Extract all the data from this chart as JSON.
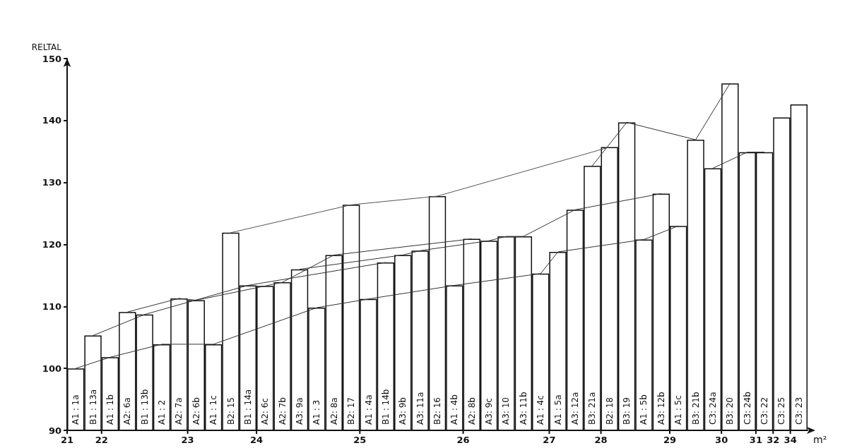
{
  "chart_data": {
    "type": "bar",
    "ylabel": "RELTAL",
    "xlabel": "m²",
    "categories": [
      "A1 : 1a",
      "B1 : 13a",
      "A1 : 1b",
      "A2: 6a",
      "B1 : 13b",
      "A1 : 2",
      "A2: 7a",
      "A2: 6b",
      "A1 : 1c",
      "B2: 15",
      "B1 : 14a",
      "A2: 6c",
      "A2: 7b",
      "A3: 9a",
      "A1 : 3",
      "A2: 8a",
      "B2: 17",
      "A1 : 4a",
      "B1 : 14b",
      "A3: 9b",
      "A3: 11a",
      "B2: 16",
      "A1 : 4b",
      "A2: 8b",
      "A3: 9c",
      "A3: 10",
      "A3: 11b",
      "A1 : 4c",
      "A1 : 5a",
      "A3: 12a",
      "B3: 21a",
      "B2: 18",
      "B3: 19",
      "A1 : 5b",
      "A3: 12b",
      "A1 : 5c",
      "B3: 21b",
      "C3: 24a",
      "B3: 20",
      "C3: 24b",
      "C3: 22",
      "C3: 25",
      "C3: 23"
    ],
    "series": [
      {
        "color": "#ffffff",
        "values": [
          100,
          105.3,
          101.8,
          109.1,
          108.7,
          103.9,
          111.3,
          111.0,
          103.9,
          121.9,
          113.4,
          113.3,
          113.9,
          116.0,
          109.8,
          118.3,
          126.4,
          111.2,
          117.1,
          118.3,
          119.0,
          127.8,
          113.4,
          120.9,
          120.6,
          121.3,
          121.3,
          115.3,
          118.8,
          125.6,
          132.7,
          135.7,
          139.7,
          120.8,
          128.2,
          123.0,
          136.9,
          132.3,
          146.0,
          134.9,
          134.9,
          140.5,
          142.6
        ]
      },
      {
        "type": "line",
        "color": "#333333",
        "values": [
          100,
          null,
          101.8,
          null,
          null,
          103.9,
          null,
          null,
          103.9,
          null,
          null,
          null,
          null,
          null,
          109.8,
          null,
          null,
          111.2,
          null,
          null,
          null,
          null,
          113.4,
          null,
          null,
          null,
          null,
          115.3,
          118.8,
          null,
          null,
          null,
          null,
          120.8,
          null,
          123.0,
          null,
          null,
          null,
          null,
          null,
          null,
          null
        ]
      },
      {
        "type": "line",
        "color": "#333333",
        "values": [
          null,
          null,
          null,
          109.1,
          null,
          null,
          111.3,
          111.0,
          null,
          null,
          null,
          113.3,
          113.9,
          null,
          null,
          118.3,
          null,
          null,
          null,
          null,
          null,
          null,
          null,
          120.9,
          null,
          null,
          null,
          null,
          null,
          null,
          null,
          null,
          null,
          null,
          null,
          null,
          null,
          null,
          null,
          null,
          null,
          null,
          null
        ]
      },
      {
        "type": "line",
        "color": "#333333",
        "values": [
          null,
          null,
          null,
          null,
          null,
          null,
          null,
          null,
          null,
          null,
          null,
          null,
          null,
          116.0,
          null,
          null,
          null,
          null,
          null,
          118.3,
          119.0,
          null,
          null,
          null,
          120.6,
          121.3,
          121.3,
          null,
          null,
          125.6,
          null,
          null,
          null,
          null,
          128.2,
          null,
          null,
          null,
          null,
          null,
          null,
          null,
          null
        ]
      },
      {
        "type": "line",
        "color": "#333333",
        "values": [
          null,
          105.3,
          null,
          null,
          108.7,
          null,
          null,
          null,
          null,
          null,
          113.4,
          null,
          null,
          null,
          null,
          null,
          null,
          null,
          117.1,
          null,
          null,
          null,
          null,
          null,
          null,
          null,
          null,
          null,
          null,
          null,
          null,
          null,
          null,
          null,
          null,
          null,
          null,
          null,
          null,
          null,
          null,
          null,
          null
        ]
      },
      {
        "type": "line",
        "color": "#555555",
        "values": [
          null,
          null,
          null,
          null,
          null,
          null,
          null,
          null,
          null,
          121.9,
          null,
          null,
          null,
          null,
          null,
          null,
          126.4,
          null,
          null,
          null,
          null,
          127.8,
          null,
          null,
          null,
          null,
          null,
          null,
          null,
          null,
          null,
          135.7,
          null,
          null,
          null,
          null,
          null,
          null,
          null,
          null,
          null,
          null,
          null
        ]
      },
      {
        "type": "line",
        "color": "#333333",
        "values": [
          null,
          null,
          null,
          null,
          null,
          null,
          null,
          null,
          null,
          null,
          null,
          null,
          null,
          null,
          null,
          null,
          null,
          null,
          null,
          null,
          null,
          null,
          null,
          null,
          null,
          null,
          null,
          null,
          null,
          null,
          132.7,
          null,
          139.7,
          null,
          null,
          null,
          136.9,
          null,
          146.0,
          null,
          null,
          null,
          null
        ]
      },
      {
        "type": "line",
        "color": "#333333",
        "values": [
          null,
          null,
          null,
          null,
          null,
          null,
          null,
          null,
          null,
          null,
          null,
          null,
          null,
          null,
          null,
          null,
          null,
          null,
          null,
          null,
          null,
          null,
          null,
          null,
          null,
          null,
          null,
          null,
          null,
          null,
          null,
          null,
          null,
          null,
          null,
          null,
          null,
          132.3,
          null,
          134.9,
          134.9,
          null,
          null
        ]
      }
    ],
    "ylim": [
      90,
      150
    ],
    "yticks": [
      90,
      100,
      110,
      120,
      130,
      140,
      150
    ],
    "grid": false,
    "marker": "none",
    "line_style": "solid",
    "annotations": [
      {
        "text": "21",
        "x": "A1 : 1a",
        "y": 90
      },
      {
        "text": "22",
        "x": "A1 : 1b",
        "y": 90
      },
      {
        "text": "23",
        "x": "A2: 6b",
        "y": 90
      },
      {
        "text": "24",
        "x": "A2: 6c",
        "y": 90
      },
      {
        "text": "25",
        "x": "A1 : 4a",
        "y": 90
      },
      {
        "text": "26",
        "x": "A2: 8b",
        "y": 90
      },
      {
        "text": "27",
        "x": "A1 : 5a",
        "y": 90
      },
      {
        "text": "28",
        "x": "B2: 18",
        "y": 90
      },
      {
        "text": "29",
        "x": "A1 : 5c",
        "y": 90
      },
      {
        "text": "30",
        "x": "B3: 20",
        "y": 90
      },
      {
        "text": "31",
        "x": "C3: 22",
        "y": 90
      },
      {
        "text": "32",
        "x": "C3: 25",
        "y": 90
      },
      {
        "text": "34",
        "x": "C3: 23",
        "y": 90
      }
    ]
  }
}
